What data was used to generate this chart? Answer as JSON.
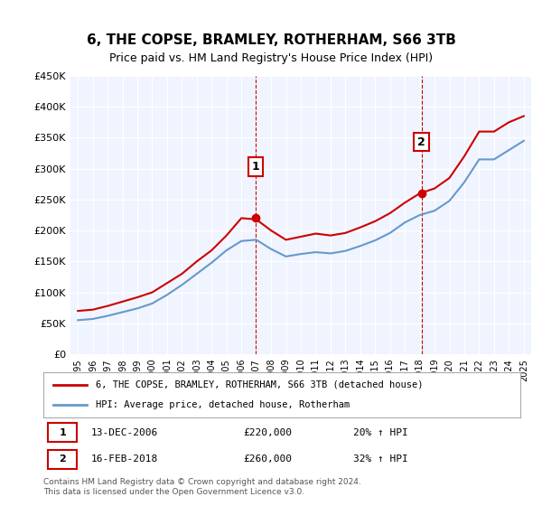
{
  "title": "6, THE COPSE, BRAMLEY, ROTHERHAM, S66 3TB",
  "subtitle": "Price paid vs. HM Land Registry's House Price Index (HPI)",
  "ylabel": "",
  "xlabel": "",
  "ylim": [
    0,
    450000
  ],
  "yticks": [
    0,
    50000,
    100000,
    150000,
    200000,
    250000,
    300000,
    350000,
    400000,
    450000
  ],
  "ytick_labels": [
    "£0",
    "£50K",
    "£100K",
    "£150K",
    "£200K",
    "£250K",
    "£300K",
    "£350K",
    "£400K",
    "£450K"
  ],
  "xtick_years": [
    1995,
    1996,
    1997,
    1998,
    1999,
    2000,
    2001,
    2002,
    2003,
    2004,
    2005,
    2006,
    2007,
    2008,
    2009,
    2010,
    2011,
    2012,
    2013,
    2014,
    2015,
    2016,
    2017,
    2018,
    2019,
    2020,
    2021,
    2022,
    2023,
    2024,
    2025
  ],
  "sale1_x": 2006.95,
  "sale1_y": 220000,
  "sale1_label": "1",
  "sale2_x": 2018.12,
  "sale2_y": 260000,
  "sale2_label": "2",
  "red_color": "#cc0000",
  "blue_color": "#6699cc",
  "annotation_bg": "#ffffff",
  "annotation_border": "#cc0000",
  "legend_label_red": "6, THE COPSE, BRAMLEY, ROTHERHAM, S66 3TB (detached house)",
  "legend_label_blue": "HPI: Average price, detached house, Rotherham",
  "info1": "1     13-DEC-2006          £220,000          20% ↑ HPI",
  "info2": "2     16-FEB-2018          £260,000          32% ↑ HPI",
  "footer": "Contains HM Land Registry data © Crown copyright and database right 2024.\nThis data is licensed under the Open Government Licence v3.0.",
  "bg_color": "#f0f4ff",
  "plot_bg": "#f0f4ff",
  "red_hpi_years": [
    1995,
    1996,
    1997,
    1998,
    1999,
    2000,
    2001,
    2002,
    2003,
    2004,
    2005,
    2006,
    2007,
    2008,
    2009,
    2010,
    2011,
    2012,
    2013,
    2014,
    2015,
    2016,
    2017,
    2018,
    2019,
    2020,
    2021,
    2022,
    2023,
    2024,
    2025
  ],
  "red_hpi_values": [
    70000,
    72000,
    78000,
    85000,
    92000,
    100000,
    115000,
    130000,
    150000,
    168000,
    192000,
    220000,
    218000,
    200000,
    185000,
    190000,
    195000,
    192000,
    196000,
    205000,
    215000,
    228000,
    245000,
    260000,
    268000,
    285000,
    320000,
    360000,
    360000,
    375000,
    385000
  ],
  "blue_hpi_years": [
    1995,
    1996,
    1997,
    1998,
    1999,
    2000,
    2001,
    2002,
    2003,
    2004,
    2005,
    2006,
    2007,
    2008,
    2009,
    2010,
    2011,
    2012,
    2013,
    2014,
    2015,
    2016,
    2017,
    2018,
    2019,
    2020,
    2021,
    2022,
    2023,
    2024,
    2025
  ],
  "blue_hpi_values": [
    55000,
    57000,
    62000,
    68000,
    74000,
    82000,
    96000,
    112000,
    130000,
    148000,
    168000,
    183000,
    185000,
    170000,
    158000,
    162000,
    165000,
    163000,
    167000,
    175000,
    184000,
    196000,
    213000,
    225000,
    232000,
    248000,
    278000,
    315000,
    315000,
    330000,
    345000
  ]
}
